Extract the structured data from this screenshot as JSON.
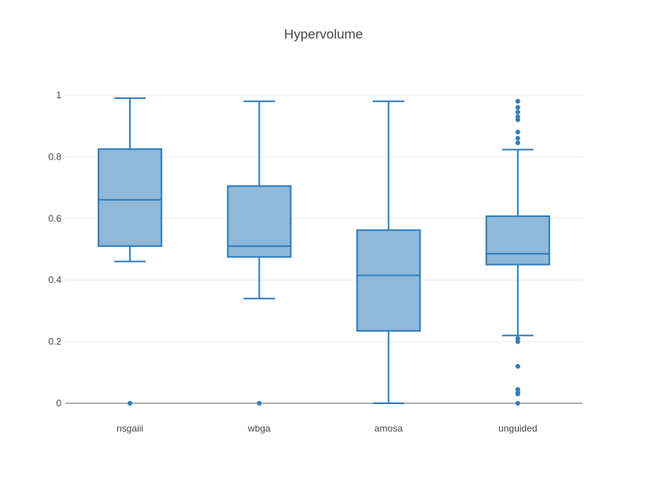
{
  "colors": {
    "box_fill": "#8fb8d9",
    "box_stroke": "#2f7dbb",
    "outlier": "#2f7dbb",
    "grid": "#eeeeee",
    "zero_line": "#9a9a9a",
    "text": "#444444"
  },
  "chart_data": {
    "type": "box",
    "title": "Hypervolume",
    "xlabel": "",
    "ylabel": "",
    "ylim": [
      0,
      1
    ],
    "y_ticks": [
      0,
      0.2,
      0.4,
      0.6,
      0.8,
      1
    ],
    "y_tick_labels": [
      "0",
      "0.2",
      "0.4",
      "0.6",
      "0.8",
      "1"
    ],
    "grid": true,
    "categories": [
      "nsgaiii",
      "wbga",
      "amosa",
      "unguided"
    ],
    "boxes": [
      {
        "category": "nsgaiii",
        "min": 0.46,
        "q1": 0.51,
        "median": 0.66,
        "q3": 0.825,
        "max": 0.99,
        "outliers": [
          0
        ]
      },
      {
        "category": "wbga",
        "min": 0.34,
        "q1": 0.475,
        "median": 0.51,
        "q3": 0.705,
        "max": 0.98,
        "outliers": [
          0
        ]
      },
      {
        "category": "amosa",
        "min": 0,
        "q1": 0.235,
        "median": 0.415,
        "q3": 0.562,
        "max": 0.98,
        "outliers": []
      },
      {
        "category": "unguided",
        "min": 0.22,
        "q1": 0.45,
        "median": 0.485,
        "q3": 0.607,
        "max": 0.823,
        "outliers": [
          0.98,
          0.96,
          0.945,
          0.93,
          0.92,
          0.88,
          0.86,
          0.845,
          0.21,
          0.2,
          0.12,
          0.045,
          0.035,
          0.03,
          0
        ]
      }
    ]
  }
}
